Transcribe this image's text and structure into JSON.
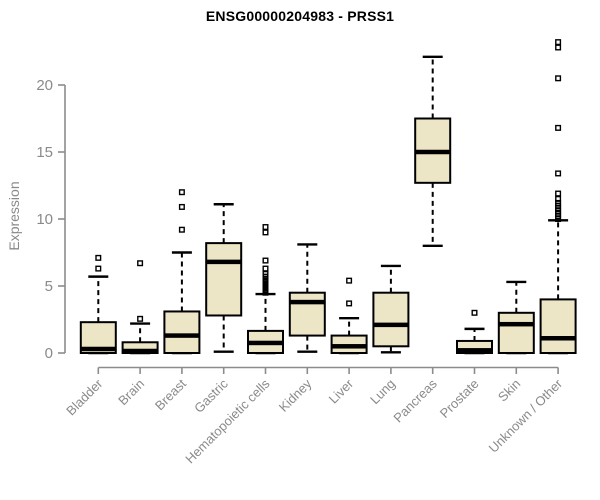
{
  "title": "ENSG00000204983 - PRSS1",
  "y_axis": {
    "label": "Expression",
    "tick_labels": [
      "0",
      "5",
      "10",
      "15",
      "20"
    ]
  },
  "colors": {
    "box_fill": "#EDE6C6",
    "box_border": "#000000",
    "median": "#000000",
    "whisker": "#000000",
    "axis_line": "#8c8c8c",
    "tick_label": "#8a8a8a",
    "title": "#000000",
    "background": "#ffffff"
  },
  "chart_data": {
    "type": "boxplot",
    "title": "ENSG00000204983 - PRSS1",
    "xlabel": "",
    "ylabel": "Expression",
    "ylim": [
      0,
      23.5
    ],
    "yticks": [
      0,
      5,
      10,
      15,
      20
    ],
    "grid": false,
    "legend": "none",
    "categories": [
      "Bladder",
      "Brain",
      "Breast",
      "Gastric",
      "Hematopoietic cells",
      "Kidney",
      "Liver",
      "Lung",
      "Pancreas",
      "Prostate",
      "Skin",
      "Unknown / Other"
    ],
    "series": [
      {
        "name": "Bladder",
        "whislo": 0,
        "q1": 0,
        "med": 0.3,
        "q3": 2.3,
        "whishi": 5.7,
        "outliers": [
          6.3,
          7.1
        ]
      },
      {
        "name": "Brain",
        "whislo": 0,
        "q1": 0,
        "med": 0.15,
        "q3": 0.8,
        "whishi": 2.2,
        "outliers": [
          2.55,
          6.7
        ]
      },
      {
        "name": "Breast",
        "whislo": 0,
        "q1": 0,
        "med": 1.3,
        "q3": 3.1,
        "whishi": 7.5,
        "outliers": [
          9.2,
          10.9,
          12.0
        ]
      },
      {
        "name": "Gastric",
        "whislo": 0.1,
        "q1": 2.8,
        "med": 6.8,
        "q3": 8.2,
        "whishi": 11.1,
        "outliers": []
      },
      {
        "name": "Hematopoietic cells",
        "whislo": 0,
        "q1": 0,
        "med": 0.75,
        "q3": 1.65,
        "whishi": 4.4,
        "outliers": [
          4.5,
          4.6,
          4.7,
          4.8,
          4.9,
          5.0,
          5.1,
          5.2,
          5.3,
          5.4,
          5.5,
          5.7,
          5.9,
          6.3,
          6.9,
          9.0,
          9.4
        ]
      },
      {
        "name": "Kidney",
        "whislo": 0.1,
        "q1": 1.3,
        "med": 3.8,
        "q3": 4.5,
        "whishi": 8.1,
        "outliers": []
      },
      {
        "name": "Liver",
        "whislo": 0,
        "q1": 0,
        "med": 0.5,
        "q3": 1.3,
        "whishi": 2.6,
        "outliers": [
          3.7,
          5.4
        ]
      },
      {
        "name": "Lung",
        "whislo": 0.05,
        "q1": 0.5,
        "med": 2.1,
        "q3": 4.5,
        "whishi": 6.5,
        "outliers": []
      },
      {
        "name": "Pancreas",
        "whislo": 8.0,
        "q1": 12.7,
        "med": 15.0,
        "q3": 17.5,
        "whishi": 22.1,
        "outliers": []
      },
      {
        "name": "Prostate",
        "whislo": 0,
        "q1": 0,
        "med": 0.2,
        "q3": 0.9,
        "whishi": 1.8,
        "outliers": [
          3.0
        ]
      },
      {
        "name": "Skin",
        "whislo": 0,
        "q1": 0,
        "med": 2.15,
        "q3": 3.0,
        "whishi": 5.3,
        "outliers": []
      },
      {
        "name": "Unknown / Other",
        "whislo": 0,
        "q1": 0,
        "med": 1.1,
        "q3": 4.0,
        "whishi": 9.9,
        "outliers": [
          10.0,
          10.2,
          10.4,
          10.6,
          10.8,
          11.0,
          11.2,
          11.5,
          11.9,
          13.4,
          16.8,
          20.5,
          22.8,
          23.2
        ]
      }
    ]
  }
}
